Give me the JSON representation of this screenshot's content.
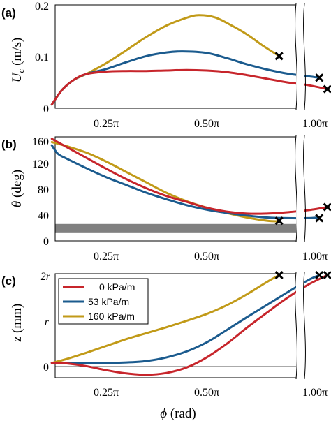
{
  "colors": {
    "red": "#c7252b",
    "blue": "#1b5b8e",
    "gold": "#c19a18",
    "band": "#808080"
  },
  "xlabel": "ϕ (rad)",
  "xticks": [
    "0.25π",
    "0.50π",
    "1.00π"
  ],
  "legend": [
    "0 kPa/m",
    "53 kPa/m",
    "160 kPa/m"
  ],
  "chart_data": [
    {
      "type": "line",
      "panel_label": "(a)",
      "ylabel": "U_c (m/s)",
      "ylim": [
        0,
        0.2
      ],
      "yticks": [
        "0",
        "0.1",
        "0.2"
      ],
      "x_units": "fraction of π",
      "series": [
        {
          "name": "0 kPa/m",
          "color": "red",
          "x": [
            0.115,
            0.14,
            0.17,
            0.2,
            0.25,
            0.3,
            0.35,
            0.4,
            0.45,
            0.5,
            0.55,
            0.6,
            0.65,
            0.7,
            0.75,
            0.8
          ],
          "y": [
            0.007,
            0.035,
            0.055,
            0.066,
            0.071,
            0.072,
            0.072,
            0.073,
            0.074,
            0.073,
            0.07,
            0.064,
            0.057,
            0.05,
            0.045,
            0.037
          ]
        },
        {
          "name": "53 kPa/m",
          "color": "blue",
          "x": [
            0.115,
            0.14,
            0.17,
            0.2,
            0.25,
            0.3,
            0.35,
            0.4,
            0.44,
            0.5,
            0.55,
            0.6,
            0.65,
            0.7,
            0.75,
            0.78
          ],
          "y": [
            0.007,
            0.035,
            0.055,
            0.066,
            0.076,
            0.089,
            0.101,
            0.108,
            0.11,
            0.107,
            0.097,
            0.085,
            0.075,
            0.067,
            0.062,
            0.059
          ]
        },
        {
          "name": "160 kPa/m",
          "color": "gold",
          "x": [
            0.115,
            0.14,
            0.17,
            0.2,
            0.25,
            0.3,
            0.35,
            0.4,
            0.45,
            0.48,
            0.52,
            0.56,
            0.6,
            0.64,
            0.68
          ],
          "y": [
            0.007,
            0.035,
            0.055,
            0.066,
            0.087,
            0.112,
            0.138,
            0.16,
            0.175,
            0.18,
            0.176,
            0.161,
            0.143,
            0.121,
            0.101
          ]
        }
      ],
      "markers": [
        {
          "x": 0.8,
          "y": 0.037
        },
        {
          "x": 0.78,
          "y": 0.059
        },
        {
          "x": 0.68,
          "y": 0.101
        }
      ]
    },
    {
      "type": "line",
      "panel_label": "(b)",
      "ylabel": "θ (deg)",
      "ylim": [
        0,
        160
      ],
      "yticks": [
        "0",
        "40",
        "80",
        "120",
        "160"
      ],
      "band": [
        12,
        26
      ],
      "series": [
        {
          "name": "0 kPa/m",
          "color": "red",
          "x": [
            0.115,
            0.15,
            0.2,
            0.25,
            0.3,
            0.35,
            0.4,
            0.45,
            0.5,
            0.55,
            0.6,
            0.65,
            0.7,
            0.75,
            0.8
          ],
          "y": [
            157,
            145,
            128,
            111,
            95,
            81,
            69,
            60,
            51,
            45,
            42,
            42,
            44,
            47,
            52
          ]
        },
        {
          "name": "53 kPa/m",
          "color": "blue",
          "x": [
            0.115,
            0.13,
            0.15,
            0.2,
            0.25,
            0.3,
            0.35,
            0.4,
            0.45,
            0.5,
            0.55,
            0.6,
            0.65,
            0.7,
            0.75,
            0.78
          ],
          "y": [
            147,
            134,
            127,
            112,
            98,
            86,
            74,
            64,
            55,
            48,
            43,
            39,
            36,
            35,
            35,
            36
          ]
        },
        {
          "name": "160 kPa/m",
          "color": "gold",
          "x": [
            0.115,
            0.15,
            0.2,
            0.25,
            0.3,
            0.35,
            0.4,
            0.45,
            0.5,
            0.55,
            0.6,
            0.65,
            0.68
          ],
          "y": [
            152,
            146,
            136,
            122,
            106,
            90,
            74,
            61,
            51,
            43,
            36,
            31,
            30
          ]
        }
      ],
      "markers": [
        {
          "x": 0.8,
          "y": 52
        },
        {
          "x": 0.78,
          "y": 35
        },
        {
          "x": 0.68,
          "y": 31
        }
      ]
    },
    {
      "type": "line",
      "panel_label": "(c)",
      "ylabel": "z (mm)",
      "yticks": [
        "0",
        "r",
        "2r"
      ],
      "ylim_units_r": [
        -0.2,
        2.0
      ],
      "series": [
        {
          "name": "0 kPa/m",
          "color": "red",
          "x": [
            0.115,
            0.15,
            0.2,
            0.25,
            0.3,
            0.35,
            0.4,
            0.45,
            0.5,
            0.55,
            0.6,
            0.65,
            0.7,
            0.75,
            0.8
          ],
          "y": [
            0.08,
            0.07,
            0.01,
            -0.08,
            -0.15,
            -0.18,
            -0.14,
            -0.02,
            0.2,
            0.5,
            0.85,
            1.18,
            1.5,
            1.78,
            2.0
          ]
        },
        {
          "name": "53 kPa/m",
          "color": "blue",
          "x": [
            0.115,
            0.15,
            0.2,
            0.25,
            0.3,
            0.35,
            0.4,
            0.45,
            0.5,
            0.55,
            0.6,
            0.65,
            0.7,
            0.75,
            0.78
          ],
          "y": [
            0.08,
            0.08,
            0.08,
            0.08,
            0.09,
            0.12,
            0.2,
            0.33,
            0.53,
            0.8,
            1.08,
            1.35,
            1.62,
            1.88,
            2.0
          ]
        },
        {
          "name": "160 kPa/m",
          "color": "gold",
          "x": [
            0.115,
            0.15,
            0.2,
            0.25,
            0.3,
            0.35,
            0.4,
            0.45,
            0.5,
            0.55,
            0.6,
            0.65,
            0.68
          ],
          "y": [
            0.08,
            0.16,
            0.3,
            0.45,
            0.6,
            0.73,
            0.86,
            1.0,
            1.15,
            1.34,
            1.58,
            1.85,
            2.0
          ]
        }
      ],
      "markers": [
        {
          "x": 0.68,
          "y": 2.0
        },
        {
          "x": 0.78,
          "y": 2.0
        },
        {
          "x": 0.8,
          "y": 2.0
        }
      ]
    }
  ]
}
